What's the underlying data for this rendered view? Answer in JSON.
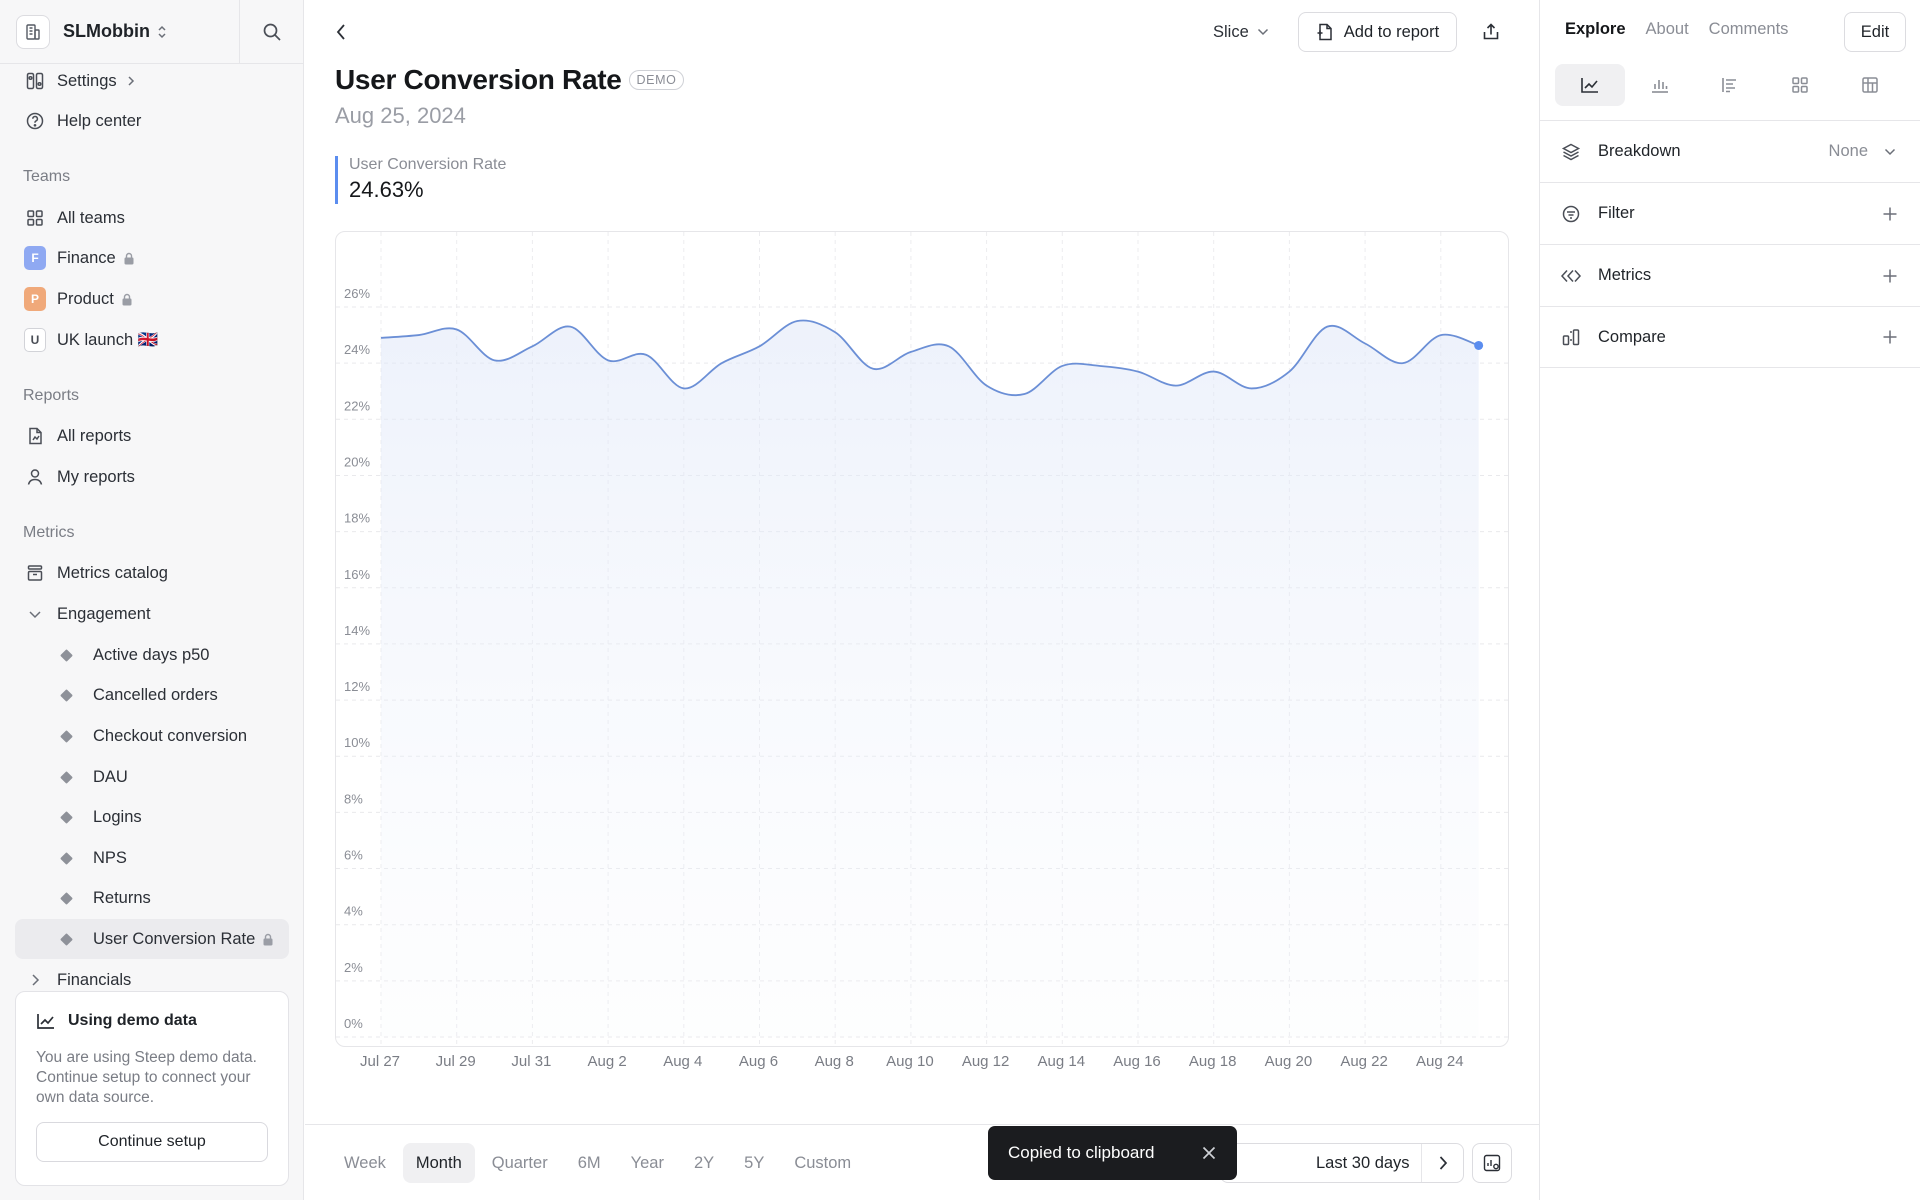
{
  "workspace": {
    "name": "SLMobbin"
  },
  "sidebar": {
    "top_items": [
      {
        "label": "Settings",
        "icon": "settings-icon"
      },
      {
        "label": "Help center",
        "icon": "help-icon"
      }
    ],
    "teams_label": "Teams",
    "teams": [
      {
        "label": "All teams",
        "badge": ""
      },
      {
        "label": "Finance",
        "badge": "F",
        "badge_color": "#8fa9f2",
        "locked": true
      },
      {
        "label": "Product",
        "badge": "P",
        "badge_color": "#f0a97a",
        "locked": true
      },
      {
        "label": "UK launch 🇬🇧",
        "badge": "U",
        "badge_color": "#ffffff"
      }
    ],
    "reports_label": "Reports",
    "reports": [
      {
        "label": "All reports"
      },
      {
        "label": "My reports"
      }
    ],
    "metrics_label": "Metrics",
    "metrics_catalog": "Metrics catalog",
    "engagement_label": "Engagement",
    "engagement_items": [
      "Active days p50",
      "Cancelled orders",
      "Checkout conversion",
      "DAU",
      "Logins",
      "NPS",
      "Returns",
      "User Conversion Rate"
    ],
    "active_item": "User Conversion Rate",
    "financials_label": "Financials"
  },
  "demo_card": {
    "title": "Using demo data",
    "text": "You are using Steep demo data. Continue setup to connect your own data source.",
    "button": "Continue setup"
  },
  "header": {
    "slice_label": "Slice",
    "add_to_report_label": "Add to report"
  },
  "page": {
    "title": "User Conversion Rate",
    "badge": "DEMO",
    "date": "Aug 25, 2024"
  },
  "metric": {
    "label": "User Conversion Rate",
    "value": "24.63%"
  },
  "chart_data": {
    "type": "area",
    "ylim": [
      0,
      26
    ],
    "y_ticks": [
      "0%",
      "2%",
      "4%",
      "6%",
      "8%",
      "10%",
      "12%",
      "14%",
      "16%",
      "18%",
      "20%",
      "22%",
      "24%",
      "26%"
    ],
    "x_ticks": [
      "Jul 27",
      "Jul 29",
      "Jul 31",
      "Aug 2",
      "Aug 4",
      "Aug 6",
      "Aug 8",
      "Aug 10",
      "Aug 12",
      "Aug 14",
      "Aug 16",
      "Aug 18",
      "Aug 20",
      "Aug 22",
      "Aug 24"
    ],
    "x": [
      "Jul 27",
      "Jul 28",
      "Jul 29",
      "Jul 30",
      "Jul 31",
      "Aug 1",
      "Aug 2",
      "Aug 3",
      "Aug 4",
      "Aug 5",
      "Aug 6",
      "Aug 7",
      "Aug 8",
      "Aug 9",
      "Aug 10",
      "Aug 11",
      "Aug 12",
      "Aug 13",
      "Aug 14",
      "Aug 15",
      "Aug 16",
      "Aug 17",
      "Aug 18",
      "Aug 19",
      "Aug 20",
      "Aug 21",
      "Aug 22",
      "Aug 23",
      "Aug 24",
      "Aug 25"
    ],
    "series": [
      {
        "values": [
          24.9,
          25.0,
          25.2,
          24.1,
          24.6,
          25.3,
          24.1,
          24.3,
          23.1,
          24.0,
          24.6,
          25.5,
          25.1,
          23.8,
          24.4,
          24.6,
          23.2,
          22.9,
          23.9,
          23.9,
          23.7,
          23.2,
          23.7,
          23.1,
          23.7,
          25.3,
          24.7,
          24.0,
          25.0,
          24.63
        ],
        "color": "#6b8fd6"
      }
    ],
    "grid": true
  },
  "range_tabs": [
    "Week",
    "Month",
    "Quarter",
    "6M",
    "Year",
    "2Y",
    "5Y",
    "Custom"
  ],
  "active_range": "Month",
  "date_range": {
    "label": "Last 30 days"
  },
  "toast": {
    "text": "Copied to clipboard"
  },
  "right_panel": {
    "tabs": [
      "Explore",
      "About",
      "Comments"
    ],
    "active_tab": "Explore",
    "edit_label": "Edit",
    "rows": [
      {
        "label": "Breakdown",
        "value": "None",
        "icon": "layers-icon",
        "action": "chevron-down-icon"
      },
      {
        "label": "Filter",
        "value": "",
        "icon": "filter-icon",
        "action": "plus-icon"
      },
      {
        "label": "Metrics",
        "value": "",
        "icon": "metrics-icon",
        "action": "plus-icon"
      },
      {
        "label": "Compare",
        "value": "",
        "icon": "compare-icon",
        "action": "plus-icon"
      }
    ]
  }
}
